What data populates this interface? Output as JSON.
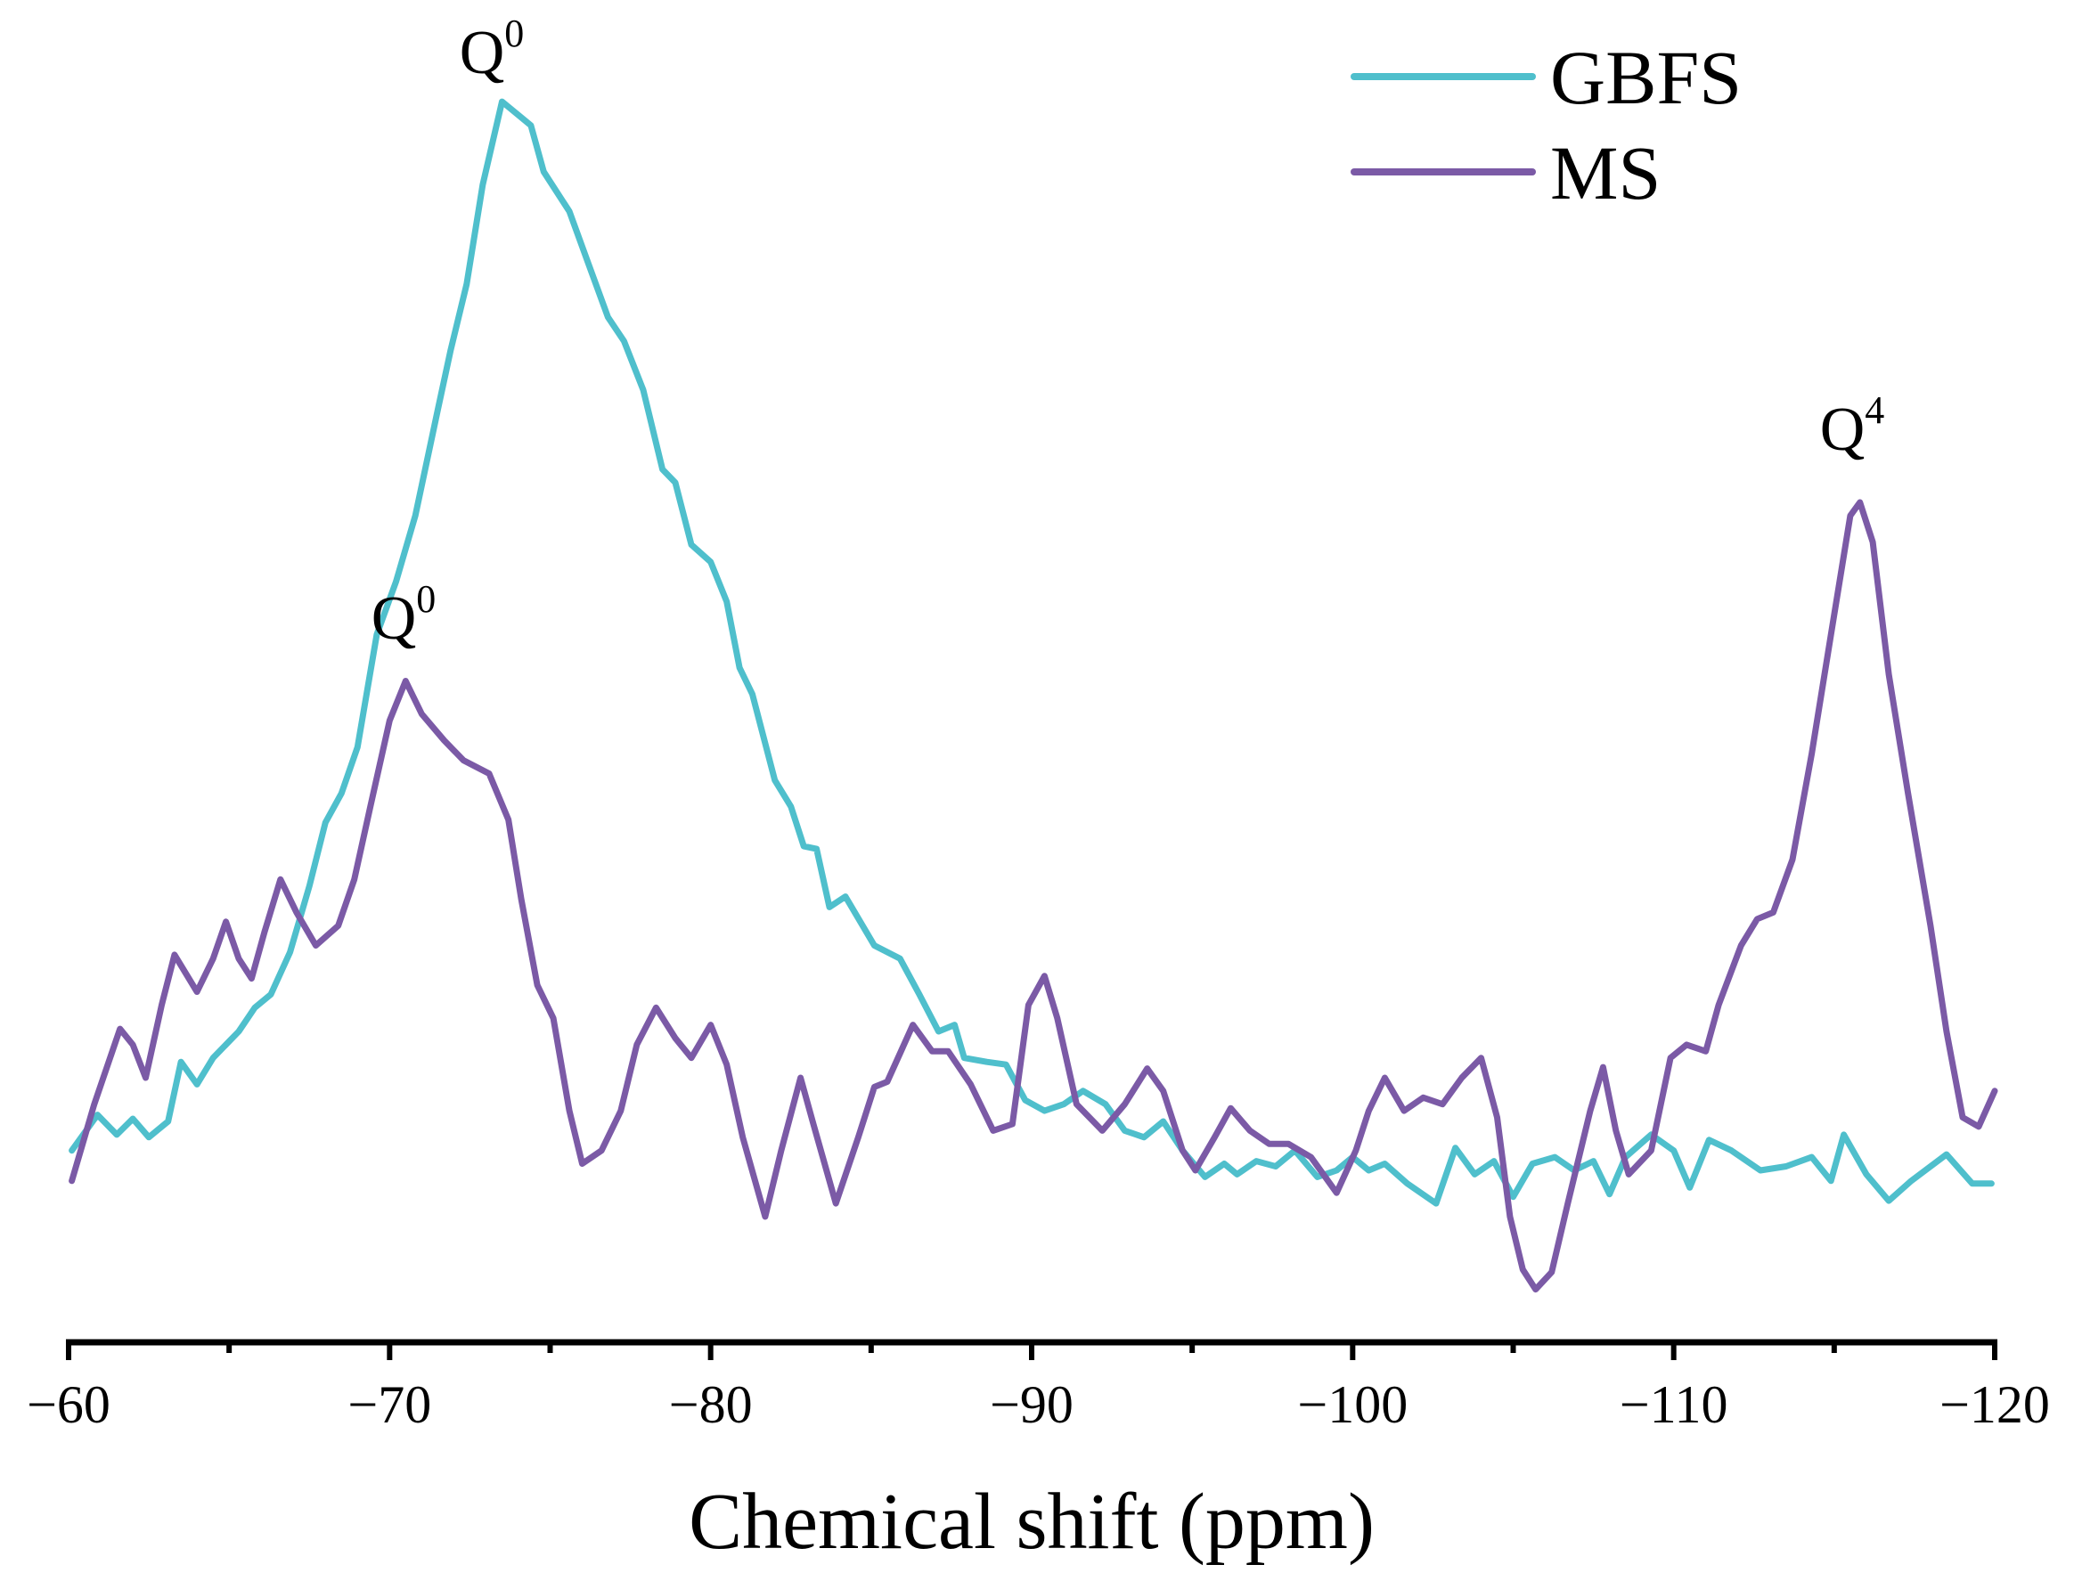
{
  "chart_data": {
    "type": "line",
    "xlabel": "Chemical shift (ppm)",
    "xlim": [
      -60,
      -120
    ],
    "xticks": [
      {
        "value": -60,
        "label": "−60"
      },
      {
        "value": -70,
        "label": "−70"
      },
      {
        "value": -80,
        "label": "−80"
      },
      {
        "value": -90,
        "label": "−90"
      },
      {
        "value": -100,
        "label": "−100"
      },
      {
        "value": -110,
        "label": "−110"
      },
      {
        "value": -120,
        "label": "−120"
      }
    ],
    "xminorticks": [
      -65,
      -75,
      -85,
      -95,
      -105,
      -115
    ],
    "ylim": [
      0,
      1000
    ],
    "legend": "upper right",
    "annotations": [
      {
        "text": "Q",
        "sup": "0"
      },
      {
        "text": "Q",
        "sup": "0"
      },
      {
        "text": "Q",
        "sup": "4"
      }
    ],
    "series": [
      {
        "name": "GBFS",
        "color": "#4fbfcc",
        "x": [
          -60.1,
          -60.9,
          -61.5,
          -62.0,
          -62.5,
          -63.1,
          -63.5,
          -64.0,
          -64.5,
          -65.3,
          -65.8,
          -66.3,
          -66.9,
          -67.5,
          -68.0,
          -68.5,
          -69.0,
          -69.6,
          -70.2,
          -70.8,
          -71.5,
          -71.9,
          -72.4,
          -72.9,
          -73.5,
          -73.9,
          -74.4,
          -74.8,
          -75.6,
          -76.2,
          -76.8,
          -77.3,
          -77.9,
          -78.5,
          -78.9,
          -79.4,
          -80.0,
          -80.5,
          -80.9,
          -81.3,
          -82.0,
          -82.5,
          -82.9,
          -83.3,
          -83.7,
          -84.2,
          -85.1,
          -85.9,
          -86.5,
          -87.1,
          -87.6,
          -87.9,
          -88.6,
          -89.2,
          -89.8,
          -90.4,
          -91.0,
          -91.6,
          -92.3,
          -92.9,
          -93.5,
          -94.1,
          -94.7,
          -95.4,
          -96.0,
          -96.4,
          -97.0,
          -97.6,
          -98.2,
          -98.9,
          -99.5,
          -100.0,
          -100.5,
          -101.0,
          -101.7,
          -102.6,
          -103.2,
          -103.8,
          -104.4,
          -105.0,
          -105.6,
          -106.3,
          -106.9,
          -107.5,
          -108.0,
          -108.5,
          -109.3,
          -110.0,
          -110.5,
          -111.1,
          -111.8,
          -112.7,
          -113.5,
          -114.3,
          -114.9,
          -115.3,
          -116.0,
          -116.7,
          -117.4,
          -118.5,
          -119.3,
          -119.9
        ],
        "values": [
          145,
          172,
          157,
          169,
          155,
          167,
          212,
          195,
          215,
          235,
          253,
          263,
          295,
          345,
          393,
          415,
          450,
          535,
          575,
          625,
          705,
          750,
          800,
          875,
          938,
          930,
          920,
          885,
          855,
          815,
          775,
          757,
          720,
          660,
          650,
          603,
          590,
          560,
          510,
          490,
          425,
          405,
          375,
          373,
          329,
          337,
          300,
          290,
          263,
          235,
          240,
          215,
          212,
          210,
          183,
          175,
          180,
          190,
          180,
          160,
          155,
          167,
          145,
          125,
          135,
          127,
          137,
          133,
          145,
          125,
          130,
          140,
          130,
          135,
          120,
          105,
          147,
          127,
          137,
          110,
          135,
          140,
          130,
          137,
          112,
          140,
          157,
          145,
          117,
          153,
          145,
          130,
          133,
          140,
          122,
          157,
          127,
          107,
          122,
          142,
          120,
          120
        ]
      },
      {
        "name": "MS",
        "color": "#7b5aa6",
        "x": [
          -60.1,
          -60.8,
          -61.6,
          -62.0,
          -62.4,
          -62.9,
          -63.3,
          -64.0,
          -64.5,
          -64.9,
          -65.3,
          -65.7,
          -66.1,
          -66.6,
          -67.1,
          -67.7,
          -68.4,
          -68.9,
          -69.4,
          -70.0,
          -70.5,
          -71.0,
          -71.7,
          -72.3,
          -73.1,
          -73.7,
          -74.1,
          -74.6,
          -75.1,
          -75.6,
          -76.0,
          -76.6,
          -77.2,
          -77.7,
          -78.3,
          -78.9,
          -79.4,
          -80.0,
          -80.5,
          -81.0,
          -81.7,
          -82.2,
          -82.8,
          -83.2,
          -83.9,
          -84.6,
          -85.1,
          -85.5,
          -86.3,
          -86.9,
          -87.4,
          -88.1,
          -88.8,
          -89.4,
          -89.9,
          -90.4,
          -90.8,
          -91.4,
          -92.2,
          -92.9,
          -93.6,
          -94.1,
          -94.7,
          -95.1,
          -95.7,
          -96.2,
          -96.8,
          -97.4,
          -98.0,
          -98.7,
          -99.5,
          -100.1,
          -100.5,
          -101.0,
          -101.6,
          -102.2,
          -102.8,
          -103.4,
          -104.0,
          -104.5,
          -104.9,
          -105.3,
          -105.7,
          -106.2,
          -106.7,
          -107.4,
          -107.8,
          -108.2,
          -108.6,
          -109.3,
          -109.9,
          -110.4,
          -111.0,
          -111.4,
          -112.1,
          -112.6,
          -113.1,
          -113.7,
          -114.3,
          -114.9,
          -115.5,
          -115.8,
          -116.2,
          -116.7,
          -117.3,
          -118.0,
          -118.5,
          -119.0,
          -119.5,
          -120.0
        ],
        "values": [
          122,
          180,
          237,
          225,
          200,
          255,
          293,
          265,
          290,
          318,
          290,
          275,
          310,
          350,
          325,
          300,
          315,
          350,
          405,
          470,
          500,
          475,
          455,
          440,
          430,
          395,
          335,
          270,
          245,
          175,
          135,
          145,
          175,
          225,
          253,
          230,
          215,
          240,
          210,
          155,
          95,
          145,
          200,
          165,
          105,
          155,
          193,
          197,
          240,
          220,
          220,
          195,
          160,
          165,
          255,
          277,
          245,
          180,
          160,
          180,
          207,
          190,
          145,
          130,
          155,
          177,
          160,
          150,
          150,
          140,
          113,
          145,
          175,
          200,
          175,
          185,
          180,
          200,
          215,
          170,
          95,
          55,
          40,
          53,
          105,
          175,
          208,
          160,
          127,
          145,
          215,
          225,
          220,
          255,
          300,
          320,
          325,
          365,
          445,
          535,
          625,
          635,
          605,
          505,
          415,
          315,
          235,
          170,
          163,
          190
        ]
      }
    ]
  }
}
